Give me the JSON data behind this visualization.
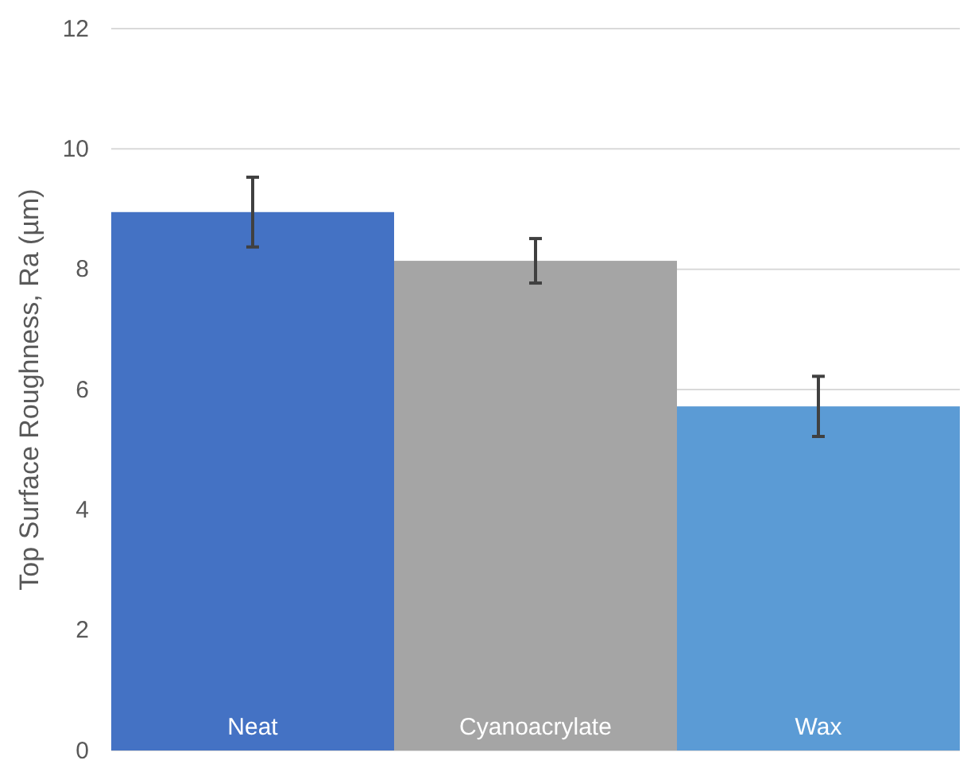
{
  "chart_data": {
    "type": "bar",
    "ylabel": "Top Surface Roughness, Ra (µm)",
    "categories": [
      "Neat",
      "Cyanoacrylate",
      "Wax"
    ],
    "values": [
      8.95,
      8.14,
      5.72
    ],
    "colors": [
      "#4472c4",
      "#a5a5a5",
      "#5b9bd5"
    ],
    "errors": [
      0.58,
      0.37,
      0.5
    ],
    "ylim": [
      0,
      12
    ],
    "yticks": [
      0,
      2,
      4,
      6,
      8,
      10,
      12
    ],
    "grid": "y"
  }
}
